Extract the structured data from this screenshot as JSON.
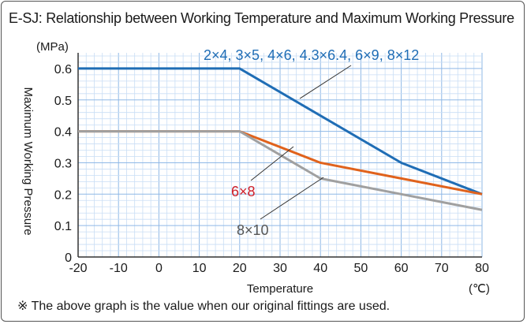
{
  "title": "E-SJ: Relationship between Working Temperature and Maximum Working Pressure",
  "note": "※ The above graph is the value when our original fittings are used.",
  "chart_data": {
    "type": "line",
    "title": "E-SJ: Relationship between Working Temperature and Maximum Working Pressure",
    "xlabel": "Temperature",
    "xunit": "(℃)",
    "ylabel": "Maximum Working Pressure",
    "yunit": "(MPa)",
    "xlim": [
      -20,
      80
    ],
    "ylim": [
      0,
      0.6
    ],
    "xticks": [
      "-20",
      "-10",
      "0",
      "10",
      "20",
      "30",
      "40",
      "50",
      "60",
      "70",
      "80"
    ],
    "yticks": [
      "0",
      "0.1",
      "0.2",
      "0.3",
      "0.4",
      "0.5",
      "0.6"
    ],
    "grid": true,
    "series": [
      {
        "name": "2×4, 3×5, 4×6, 4.3×6.4, 6×9, 8×12",
        "color": "#1f6db5",
        "x": [
          -20,
          20,
          60,
          80
        ],
        "y": [
          0.6,
          0.6,
          0.3,
          0.2
        ]
      },
      {
        "name": "6×8",
        "color": "#e0621c",
        "label_color": "#d0202a",
        "x": [
          -20,
          20,
          40,
          60,
          80
        ],
        "y": [
          0.4,
          0.4,
          0.3,
          0.25,
          0.2
        ]
      },
      {
        "name": "8×10",
        "color": "#a0a0a0",
        "label_color": "#555555",
        "x": [
          -20,
          20,
          40,
          60,
          80
        ],
        "y": [
          0.4,
          0.4,
          0.25,
          0.2,
          0.15
        ]
      }
    ]
  }
}
